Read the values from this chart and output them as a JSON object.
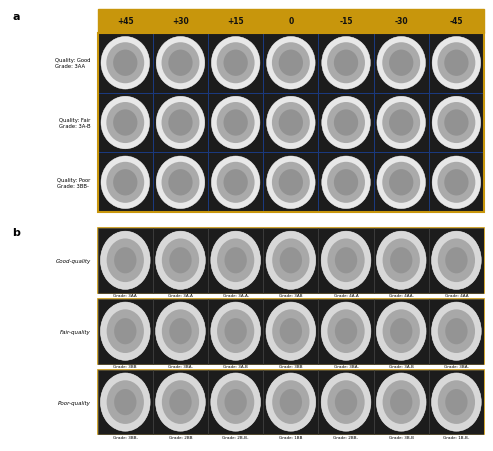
{
  "panel_a": {
    "label": "a",
    "col_headers": [
      "+45",
      "+30",
      "+15",
      "0",
      "-15",
      "-30",
      "-45"
    ],
    "col_header_bg": "#C8960C",
    "col_header_color": "#111111",
    "row_labels": [
      "Quality: Good\nGrade: 3AA",
      "Quality: Fair\nGrade: 3A-B",
      "Quality: Poor\nGrade: 3BB-"
    ],
    "outer_border": "#C8960C",
    "inner_border": "#1a3a80",
    "n_rows": 3,
    "n_cols": 7,
    "cell_dark_bg": "#1c1c1c",
    "embryo_outer": "#c8c8c8",
    "embryo_ring": "#e8e8e8",
    "embryo_inner": "#8a8a8a"
  },
  "panel_b": {
    "label": "b",
    "row_labels": [
      "Good-quality",
      "Fair-quality",
      "Poor-quality"
    ],
    "row_sublabels": [
      [
        "Grade: 3AA",
        "Grade: 3A-A",
        "Grade: 3A-A-",
        "Grade: 3AB",
        "Grade: 4A-A",
        "Grade: 4AA-",
        "Grade: 4AA"
      ],
      [
        "Grade: 3BB",
        "Grade: 3BA-",
        "Grade: 3A-B",
        "Grade: 3BB",
        "Grade: 3BA-",
        "Grade: 3A-B",
        "Grade: 3BA-"
      ],
      [
        "Grade: 3BB-",
        "Grade: 2BB",
        "Grade: 2B-B-",
        "Grade: 1BB",
        "Grade: 2BB-",
        "Grade: 3B-B",
        "Grade: 1B-B-"
      ]
    ],
    "outer_border": "#C8960C",
    "inner_border": "#444444",
    "n_rows": 3,
    "n_cols": 7,
    "cell_dark_bg": "#1c1c1c",
    "cell_gray_bg": "#b0b0b0",
    "embryo_outer": "#d0d0d0",
    "embryo_ring": "#f0f0f0",
    "embryo_inner": "#909090"
  },
  "fig_bg": "#ffffff",
  "label_color": "#000000"
}
